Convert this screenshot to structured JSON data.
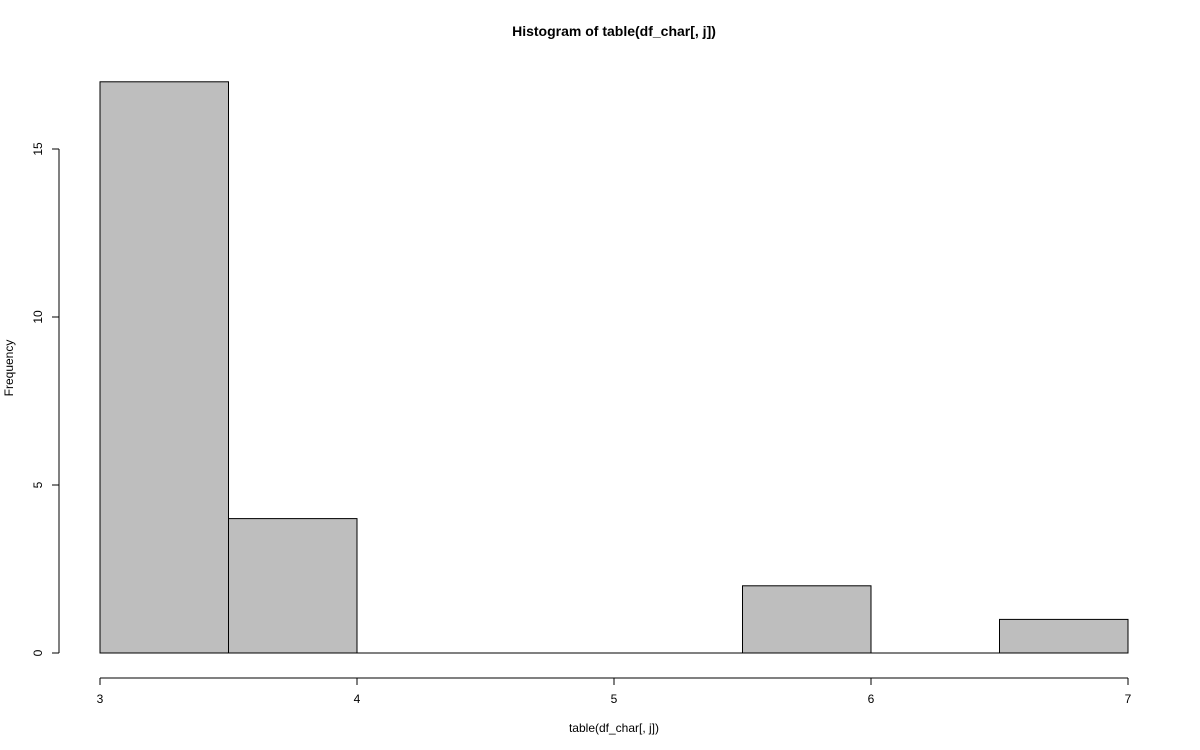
{
  "chart_data": {
    "type": "bar",
    "title": "Histogram of table(df_char[, j])",
    "xlabel": "table(df_char[, j])",
    "ylabel": "Frequency",
    "xlim": [
      3,
      7
    ],
    "ylim": [
      0,
      17
    ],
    "bins": [
      {
        "x0": 3.0,
        "x1": 3.5,
        "count": 17
      },
      {
        "x0": 3.5,
        "x1": 4.0,
        "count": 4
      },
      {
        "x0": 4.0,
        "x1": 4.5,
        "count": 0
      },
      {
        "x0": 4.5,
        "x1": 5.0,
        "count": 0
      },
      {
        "x0": 5.0,
        "x1": 5.5,
        "count": 0
      },
      {
        "x0": 5.5,
        "x1": 6.0,
        "count": 2
      },
      {
        "x0": 6.0,
        "x1": 6.5,
        "count": 0
      },
      {
        "x0": 6.5,
        "x1": 7.0,
        "count": 1
      }
    ],
    "x_ticks": [
      3,
      4,
      5,
      6,
      7
    ],
    "y_ticks": [
      0,
      5,
      10,
      15
    ],
    "grid": false,
    "legend": "none",
    "bar_color": "#bebebe"
  }
}
